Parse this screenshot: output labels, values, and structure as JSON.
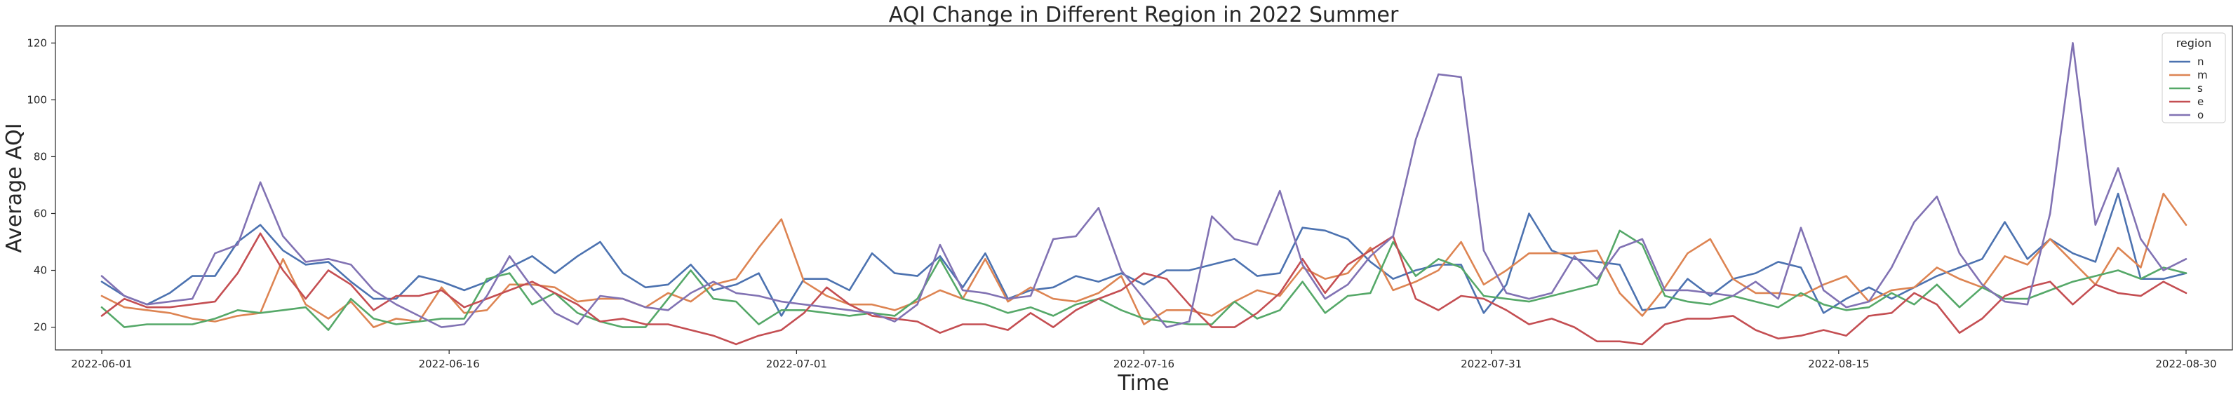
{
  "chart_data": {
    "type": "line",
    "title": "AQI Change in Different Region in 2022 Summer",
    "xlabel": "Time",
    "ylabel": "Average AQI",
    "ylim": [
      12,
      126
    ],
    "xlim": [
      "2022-05-30",
      "2022-09-01"
    ],
    "x_ticks": [
      "2022-06-01",
      "2022-06-16",
      "2022-07-01",
      "2022-07-16",
      "2022-07-31",
      "2022-08-15",
      "2022-08-30"
    ],
    "y_ticks": [
      20,
      40,
      60,
      80,
      100,
      120
    ],
    "grid": false,
    "legend": {
      "title": "region",
      "placement": "top-right"
    },
    "x_start": "2022-06-01",
    "x_end": "2022-08-30",
    "series": [
      {
        "name": "n",
        "color": "#4c72b0",
        "values": [
          36,
          31,
          28,
          32,
          38,
          38,
          50,
          56,
          47,
          42,
          43,
          36,
          30,
          30,
          38,
          36,
          33,
          36,
          41,
          45,
          39,
          45,
          50,
          39,
          34,
          35,
          42,
          33,
          35,
          39,
          24,
          37,
          37,
          33,
          46,
          39,
          38,
          45,
          34,
          46,
          30,
          33,
          34,
          38,
          36,
          39,
          35,
          40,
          40,
          42,
          44,
          38,
          39,
          55,
          54,
          51,
          43,
          37,
          40,
          42,
          42,
          25,
          35,
          60,
          47,
          44,
          43,
          42,
          26,
          27,
          37,
          31,
          37,
          39,
          43,
          41,
          25,
          30,
          34,
          30,
          34,
          38,
          41,
          44,
          57,
          44,
          51,
          46,
          43,
          67,
          37,
          37,
          39
        ]
      },
      {
        "name": "m",
        "color": "#dd8452",
        "values": [
          31,
          27,
          26,
          25,
          23,
          22,
          24,
          25,
          44,
          28,
          23,
          29,
          20,
          23,
          22,
          34,
          25,
          26,
          35,
          35,
          34,
          29,
          30,
          30,
          27,
          32,
          29,
          35,
          37,
          48,
          58,
          36,
          31,
          28,
          28,
          26,
          29,
          33,
          30,
          44,
          29,
          34,
          30,
          29,
          32,
          38,
          21,
          26,
          26,
          24,
          29,
          33,
          31,
          41,
          37,
          39,
          48,
          33,
          36,
          40,
          50,
          35,
          40,
          46,
          46,
          46,
          47,
          32,
          24,
          34,
          46,
          51,
          37,
          32,
          32,
          31,
          35,
          38,
          29,
          33,
          34,
          41,
          37,
          34,
          45,
          42,
          51,
          43,
          35,
          48,
          41,
          67,
          56
        ]
      },
      {
        "name": "s",
        "color": "#55a868",
        "values": [
          27,
          20,
          21,
          21,
          21,
          23,
          26,
          25,
          26,
          27,
          19,
          30,
          23,
          21,
          22,
          23,
          23,
          37,
          39,
          28,
          32,
          25,
          22,
          20,
          20,
          30,
          40,
          30,
          29,
          21,
          26,
          26,
          25,
          24,
          25,
          24,
          30,
          44,
          30,
          28,
          25,
          27,
          24,
          28,
          30,
          26,
          23,
          22,
          21,
          21,
          29,
          23,
          26,
          36,
          25,
          31,
          32,
          50,
          38,
          44,
          41,
          31,
          30,
          29,
          31,
          33,
          35,
          54,
          49,
          31,
          29,
          28,
          31,
          29,
          27,
          32,
          28,
          26,
          27,
          32,
          28,
          35,
          27,
          34,
          30,
          30,
          33,
          36,
          38,
          40,
          37,
          41,
          39
        ]
      },
      {
        "name": "e",
        "color": "#c44e52",
        "values": [
          24,
          30,
          27,
          27,
          28,
          29,
          39,
          53,
          40,
          30,
          40,
          35,
          26,
          31,
          31,
          33,
          27,
          30,
          33,
          36,
          32,
          28,
          22,
          23,
          21,
          21,
          19,
          17,
          14,
          17,
          19,
          25,
          34,
          28,
          24,
          23,
          22,
          18,
          21,
          21,
          19,
          25,
          20,
          26,
          30,
          33,
          39,
          37,
          28,
          20,
          20,
          25,
          32,
          44,
          32,
          42,
          47,
          52,
          30,
          26,
          31,
          30,
          26,
          21,
          23,
          20,
          15,
          15,
          14,
          21,
          23,
          23,
          24,
          19,
          16,
          17,
          19,
          17,
          24,
          25,
          32,
          28,
          18,
          23,
          31,
          34,
          36,
          28,
          35,
          32,
          31,
          36,
          32
        ]
      },
      {
        "name": "o",
        "color": "#8172b3",
        "values": [
          38,
          31,
          28,
          29,
          30,
          46,
          49,
          71,
          52,
          43,
          44,
          42,
          33,
          28,
          24,
          20,
          21,
          31,
          45,
          34,
          25,
          21,
          31,
          30,
          27,
          26,
          32,
          36,
          32,
          31,
          29,
          28,
          27,
          26,
          25,
          22,
          28,
          49,
          33,
          32,
          30,
          31,
          51,
          52,
          62,
          40,
          30,
          20,
          22,
          59,
          51,
          49,
          68,
          42,
          30,
          35,
          45,
          52,
          86,
          109,
          108,
          47,
          32,
          30,
          32,
          45,
          37,
          48,
          51,
          33,
          33,
          32,
          31,
          36,
          30,
          55,
          33,
          27,
          29,
          41,
          57,
          66,
          46,
          35,
          29,
          28,
          60,
          120,
          56,
          76,
          51,
          40,
          44
        ]
      }
    ]
  }
}
